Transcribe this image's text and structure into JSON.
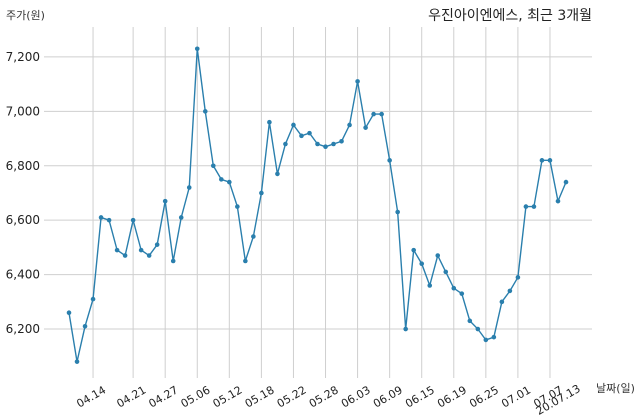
{
  "chart_data": {
    "type": "line",
    "title": "우진아이엔에스, 최근 3개월",
    "ylabel": "주가(원)",
    "xlabel": "날짜(일)",
    "grid": true,
    "ylim": [
      6020,
      7310
    ],
    "yticks": [
      6200,
      6400,
      6600,
      6800,
      7000,
      7200
    ],
    "ytick_labels": [
      "6,200",
      "6,400",
      "6,600",
      "6,800",
      "7,000",
      "7,200"
    ],
    "xtick_index": [
      3,
      8,
      12,
      16,
      20,
      24,
      28,
      32,
      36,
      40,
      44,
      48,
      52,
      56,
      60
    ],
    "xtick_labels": [
      "04.14",
      "04.21",
      "04.27",
      "05.06",
      "05.12",
      "05.18",
      "05.22",
      "05.28",
      "06.03",
      "06.09",
      "06.15",
      "06.19",
      "06.25",
      "07.01",
      "07.07"
    ],
    "last_tick_label": "20.07.13",
    "series": [
      {
        "values": [
          6260,
          6080,
          6210,
          6310,
          6610,
          6600,
          6490,
          6470,
          6600,
          6490,
          6470,
          6510,
          6670,
          6450,
          6610,
          6720,
          7230,
          7000,
          6800,
          6750,
          6740,
          6650,
          6450,
          6540,
          6700,
          6960,
          6770,
          6880,
          6950,
          6910,
          6920,
          6880,
          6870,
          6880,
          6890,
          6950,
          7110,
          6940,
          6990,
          6990,
          6820,
          6630,
          6200,
          6490,
          6440,
          6360,
          6470,
          6410,
          6350,
          6330,
          6230,
          6200,
          6160,
          6170,
          6300,
          6340,
          6390,
          6650,
          6650,
          6820,
          6820,
          6670,
          6740
        ]
      }
    ]
  }
}
